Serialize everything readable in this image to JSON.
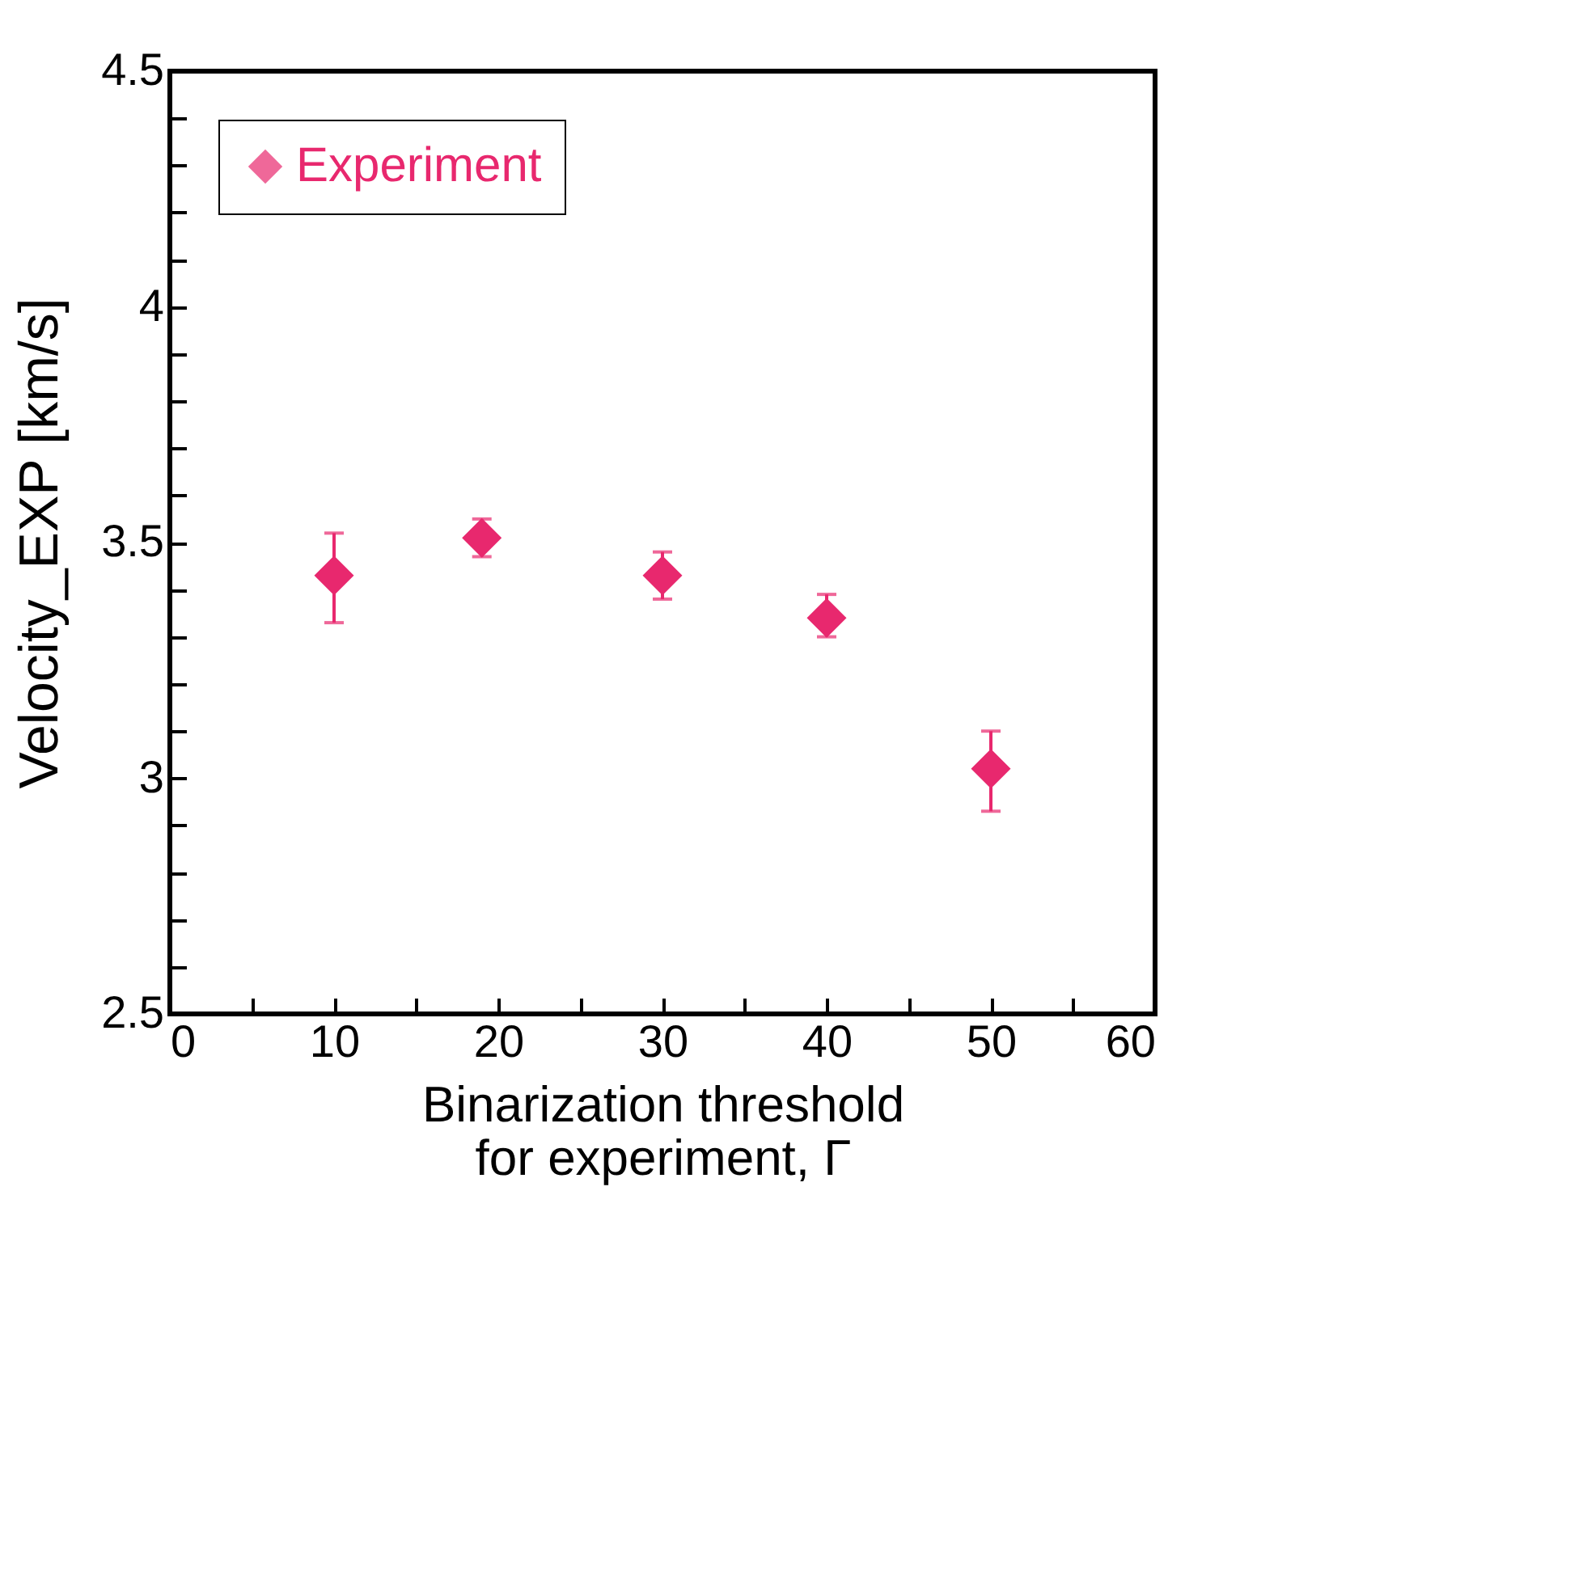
{
  "chart_data": {
    "type": "scatter",
    "xlabel": "Binarization threshold\nfor experiment, Γ",
    "ylabel": "Velocity_EXP [km/s]",
    "x": [
      10,
      19,
      30,
      40,
      50
    ],
    "series": [
      {
        "name": "Experiment",
        "color": "#e8286e",
        "values": [
          3.43,
          3.51,
          3.43,
          3.34,
          3.02
        ],
        "errors": [
          [
            3.33,
            3.52
          ],
          [
            3.47,
            3.55
          ],
          [
            3.38,
            3.48
          ],
          [
            3.3,
            3.39
          ],
          [
            2.93,
            3.1
          ]
        ]
      }
    ],
    "xlim": [
      0,
      60
    ],
    "xticks": [
      0,
      {
        "value": 5,
        "label": null
      },
      10,
      {
        "value": 15,
        "label": null
      },
      20,
      {
        "value": 25,
        "label": null
      },
      30,
      {
        "value": 35,
        "label": null
      },
      40,
      {
        "value": 45,
        "label": null
      },
      50,
      {
        "value": 55,
        "label": null
      },
      60
    ],
    "ylim": [
      2.5,
      4.5
    ],
    "yticks": [
      2.5,
      {
        "value": 2.6,
        "label": null
      },
      {
        "value": 2.7,
        "label": null
      },
      {
        "value": 2.8,
        "label": null
      },
      {
        "value": 2.9,
        "label": null
      },
      3,
      {
        "value": 3.1,
        "label": null
      },
      {
        "value": 3.2,
        "label": null
      },
      {
        "value": 3.3,
        "label": null
      },
      {
        "value": 3.4,
        "label": null
      },
      3.5,
      {
        "value": 3.6,
        "label": null
      },
      {
        "value": 3.7,
        "label": null
      },
      {
        "value": 3.8,
        "label": null
      },
      {
        "value": 3.9,
        "label": null
      },
      4,
      {
        "value": 4.1,
        "label": null
      },
      {
        "value": 4.2,
        "label": null
      },
      {
        "value": 4.3,
        "label": null
      },
      {
        "value": 4.4,
        "label": null
      },
      4.5
    ],
    "marker": "diamond",
    "legend": "top left",
    "grid": false
  }
}
